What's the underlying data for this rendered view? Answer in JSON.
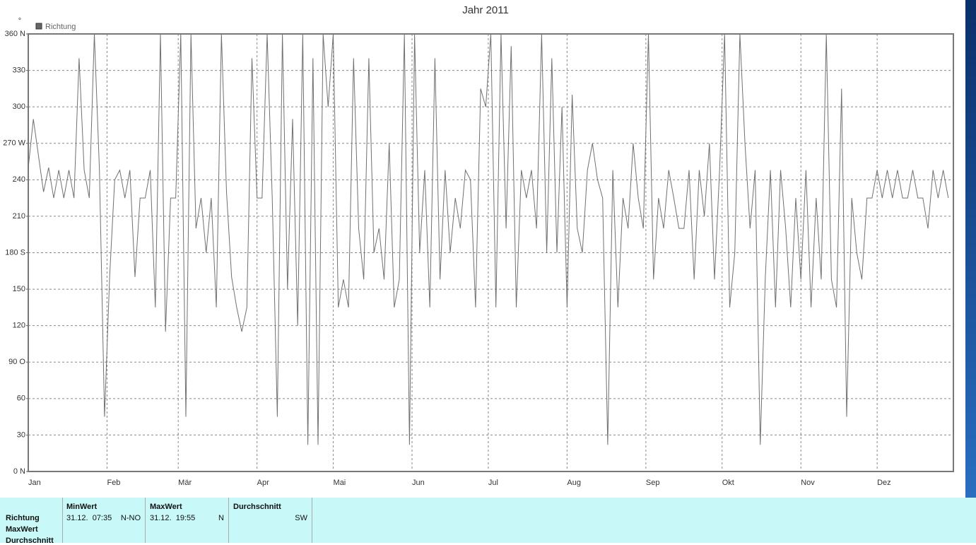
{
  "chart_data": {
    "type": "line",
    "title": "Jahr 2011",
    "ylabel": "°",
    "x": [
      0,
      2,
      4,
      6,
      8,
      10,
      12,
      14,
      16,
      18,
      20,
      22,
      24,
      26,
      28,
      30,
      32,
      34,
      36,
      38,
      40,
      42,
      44,
      46,
      48,
      50,
      52,
      54,
      56,
      58,
      60,
      62,
      64,
      66,
      68,
      70,
      72,
      74,
      76,
      78,
      80,
      82,
      84,
      86,
      88,
      90,
      92,
      94,
      96,
      98,
      100,
      102,
      104,
      106,
      108,
      110,
      112,
      114,
      116,
      118,
      120,
      122,
      124,
      126,
      128,
      130,
      132,
      134,
      136,
      138,
      140,
      142,
      144,
      146,
      148,
      150,
      152,
      154,
      156,
      158,
      160,
      162,
      164,
      166,
      168,
      170,
      172,
      174,
      176,
      178,
      180,
      182,
      184,
      186,
      188,
      190,
      192,
      194,
      196,
      198,
      200,
      202,
      204,
      206,
      208,
      210,
      212,
      214,
      216,
      218,
      220,
      222,
      224,
      226,
      228,
      230,
      232,
      234,
      236,
      238,
      240,
      242,
      244,
      246,
      248,
      250,
      252,
      254,
      256,
      258,
      260,
      262,
      264,
      266,
      268,
      270,
      272,
      274,
      276,
      278,
      280,
      282,
      284,
      286,
      288,
      290,
      292,
      294,
      296,
      298,
      300,
      302,
      304,
      306,
      308,
      310,
      312,
      314,
      316,
      318,
      320,
      322,
      324,
      326,
      328,
      330,
      332,
      334,
      336,
      338,
      340,
      342,
      344,
      346,
      348,
      350,
      352,
      354,
      356,
      358,
      360,
      362
    ],
    "series": [
      {
        "name": "Richtung",
        "color": "#707070",
        "values": [
          250,
          290,
          260,
          230,
          250,
          225,
          248,
          225,
          248,
          225,
          340,
          248,
          225,
          360,
          248,
          45,
          160,
          240,
          248,
          225,
          248,
          160,
          225,
          225,
          248,
          135,
          360,
          115,
          225,
          225,
          360,
          45,
          360,
          200,
          225,
          180,
          225,
          135,
          360,
          230,
          160,
          135,
          115,
          135,
          340,
          225,
          225,
          360,
          225,
          45,
          360,
          150,
          290,
          120,
          360,
          22,
          340,
          22,
          360,
          300,
          360,
          135,
          158,
          135,
          340,
          200,
          158,
          340,
          180,
          200,
          158,
          270,
          135,
          158,
          360,
          22,
          360,
          180,
          248,
          135,
          340,
          158,
          248,
          180,
          225,
          200,
          248,
          240,
          135,
          315,
          300,
          360,
          135,
          360,
          200,
          350,
          135,
          248,
          225,
          248,
          200,
          360,
          180,
          340,
          180,
          300,
          135,
          310,
          200,
          180,
          248,
          270,
          240,
          225,
          22,
          248,
          135,
          225,
          200,
          270,
          225,
          200,
          360,
          158,
          225,
          200,
          248,
          225,
          200,
          200,
          248,
          158,
          248,
          210,
          270,
          158,
          248,
          360,
          135,
          180,
          360,
          270,
          200,
          248,
          22,
          160,
          248,
          135,
          248,
          200,
          135,
          225,
          158,
          248,
          135,
          225,
          158,
          360,
          158,
          135,
          315,
          45,
          225,
          180,
          158,
          225,
          225,
          248,
          225,
          248,
          225,
          248,
          225,
          225,
          248,
          225,
          225,
          200,
          248,
          225,
          248,
          225
        ]
      }
    ],
    "xlim": [
      0,
      364
    ],
    "xticks": [
      {
        "value": 0,
        "label": "Jan"
      },
      {
        "value": 31,
        "label": "Feb"
      },
      {
        "value": 59,
        "label": "Mär"
      },
      {
        "value": 90,
        "label": "Apr"
      },
      {
        "value": 120,
        "label": "Mai"
      },
      {
        "value": 151,
        "label": "Jun"
      },
      {
        "value": 181,
        "label": "Jul"
      },
      {
        "value": 212,
        "label": "Aug"
      },
      {
        "value": 243,
        "label": "Sep"
      },
      {
        "value": 273,
        "label": "Okt"
      },
      {
        "value": 304,
        "label": "Nov"
      },
      {
        "value": 334,
        "label": "Dez"
      }
    ],
    "ylim": [
      0,
      360
    ],
    "yticks": [
      {
        "value": 0,
        "label": "0 N"
      },
      30,
      60,
      {
        "value": 90,
        "label": "90 O"
      },
      120,
      150,
      {
        "value": 180,
        "label": "180 S"
      },
      210,
      240,
      {
        "value": 270,
        "label": "270 W"
      },
      300,
      330,
      {
        "value": 360,
        "label": "360 N"
      }
    ],
    "grid": true
  },
  "table": {
    "columns": [
      "MinWert",
      "MaxWert",
      "Durchschnitt"
    ],
    "row_labels": [
      "Richtung",
      "MaxWert",
      "Durchschnitt"
    ],
    "cells": [
      [
        "31.12.  07:35",
        "N-NO"
      ],
      [
        "31.12.  19:55",
        "N"
      ],
      [
        "",
        "SW"
      ]
    ]
  }
}
